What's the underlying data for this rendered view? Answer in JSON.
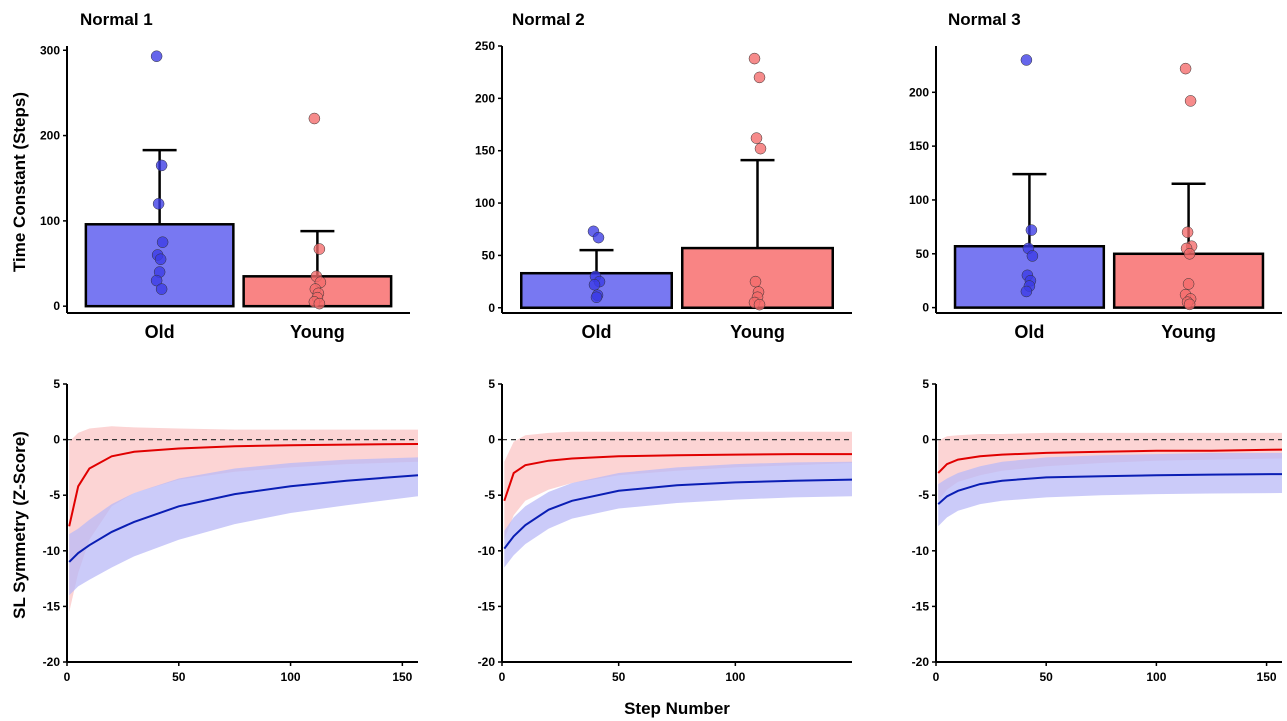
{
  "figure": {
    "ylabel_top": "Time Constant (Steps)",
    "ylabel_bottom": "SL Symmetry (Z-Score)",
    "xlabel_bottom": "Step Number"
  },
  "colors": {
    "old": "#7878f2",
    "old_point": "#3b3be6",
    "old_line": "#0a1eb4",
    "old_band": "#b9b9f7",
    "young": "#f98484",
    "young_point": "#f46a6a",
    "young_line": "#e00000",
    "young_band": "#fbc6c6"
  },
  "chart_data": [
    {
      "type": "bar",
      "panel": "top-1",
      "title": "Normal 1",
      "ylabel": "Time Constant (Steps)",
      "categories": [
        "Old",
        "Young"
      ],
      "values": [
        96,
        35
      ],
      "error_upper": [
        183,
        88
      ],
      "points": [
        [
          293,
          165,
          120,
          75,
          60,
          55,
          40,
          30,
          20
        ],
        [
          220,
          67,
          35,
          28,
          20,
          15,
          10,
          5,
          3
        ]
      ],
      "ylim": [
        -8,
        305
      ],
      "yticks": [
        0,
        100,
        200,
        300
      ]
    },
    {
      "type": "bar",
      "panel": "top-2",
      "title": "Normal 2",
      "ylabel": "",
      "categories": [
        "Old",
        "Young"
      ],
      "values": [
        33,
        57
      ],
      "error_upper": [
        55,
        141
      ],
      "points": [
        [
          73,
          67,
          30,
          25,
          22,
          12,
          10
        ],
        [
          238,
          220,
          162,
          152,
          25,
          15,
          10,
          5,
          3
        ]
      ],
      "ylim": [
        -5,
        250
      ],
      "yticks": [
        0,
        50,
        100,
        150,
        200,
        250
      ]
    },
    {
      "type": "bar",
      "panel": "top-3",
      "title": "Normal 3",
      "ylabel": "",
      "categories": [
        "Old",
        "Young"
      ],
      "values": [
        57,
        50
      ],
      "error_upper": [
        124,
        115
      ],
      "points": [
        [
          230,
          72,
          55,
          48,
          30,
          25,
          20,
          15
        ],
        [
          222,
          192,
          70,
          57,
          55,
          50,
          22,
          12,
          8,
          5,
          3
        ]
      ],
      "ylim": [
        -5,
        243
      ],
      "yticks": [
        0,
        50,
        100,
        150,
        200
      ]
    },
    {
      "type": "line",
      "panel": "bottom-1",
      "ylabel": "SL Symmetry (Z-Score)",
      "xlabel": "",
      "xlim": [
        0,
        157
      ],
      "ylim": [
        -20,
        5
      ],
      "xticks": [
        0,
        50,
        100,
        150
      ],
      "yticks": [
        5,
        0,
        -5,
        -10,
        -15,
        -20
      ],
      "reference_line": 0,
      "series": [
        {
          "group": "young",
          "x": [
            1,
            5,
            10,
            20,
            30,
            50,
            75,
            100,
            125,
            157
          ],
          "y": [
            -7.8,
            -4.2,
            -2.6,
            -1.5,
            -1.1,
            -0.8,
            -0.6,
            -0.5,
            -0.45,
            -0.4
          ],
          "upper": [
            -0.2,
            0.6,
            1.0,
            1.2,
            1.1,
            1.0,
            0.9,
            0.9,
            0.9,
            0.9
          ],
          "lower": [
            -15.5,
            -12.0,
            -9.0,
            -6.0,
            -4.8,
            -3.6,
            -2.9,
            -2.5,
            -2.2,
            -2.0
          ]
        },
        {
          "group": "old",
          "x": [
            1,
            5,
            10,
            20,
            30,
            50,
            75,
            100,
            125,
            157
          ],
          "y": [
            -11.0,
            -10.2,
            -9.5,
            -8.3,
            -7.4,
            -6.0,
            -4.9,
            -4.2,
            -3.7,
            -3.2
          ],
          "upper": [
            -8.5,
            -8.0,
            -7.2,
            -5.8,
            -4.8,
            -3.5,
            -2.6,
            -2.1,
            -1.8,
            -1.6
          ],
          "lower": [
            -14.0,
            -13.2,
            -12.6,
            -11.5,
            -10.5,
            -9.0,
            -7.6,
            -6.6,
            -5.9,
            -5.1
          ]
        }
      ]
    },
    {
      "type": "line",
      "panel": "bottom-2",
      "ylabel": "",
      "xlabel": "Step Number",
      "xlim": [
        0,
        150
      ],
      "ylim": [
        -20,
        5
      ],
      "xticks": [
        0,
        50,
        100
      ],
      "yticks": [
        5,
        0,
        -5,
        -10,
        -15,
        -20
      ],
      "reference_line": 0,
      "series": [
        {
          "group": "young",
          "x": [
            1,
            5,
            10,
            20,
            30,
            50,
            75,
            100,
            125,
            150
          ],
          "y": [
            -5.5,
            -3.0,
            -2.3,
            -1.9,
            -1.7,
            -1.5,
            -1.4,
            -1.35,
            -1.3,
            -1.3
          ],
          "upper": [
            -2.0,
            -0.2,
            0.4,
            0.6,
            0.7,
            0.7,
            0.7,
            0.7,
            0.7,
            0.7
          ],
          "lower": [
            -9.0,
            -6.8,
            -5.5,
            -4.5,
            -3.9,
            -3.2,
            -2.8,
            -2.5,
            -2.3,
            -2.1
          ]
        },
        {
          "group": "old",
          "x": [
            1,
            5,
            10,
            20,
            30,
            50,
            75,
            100,
            125,
            150
          ],
          "y": [
            -9.8,
            -8.7,
            -7.7,
            -6.3,
            -5.5,
            -4.6,
            -4.1,
            -3.85,
            -3.7,
            -3.6
          ],
          "upper": [
            -8.2,
            -7.0,
            -6.0,
            -4.7,
            -3.9,
            -3.0,
            -2.5,
            -2.2,
            -2.05,
            -2.0
          ],
          "lower": [
            -11.5,
            -10.4,
            -9.4,
            -8.0,
            -7.1,
            -6.2,
            -5.7,
            -5.4,
            -5.2,
            -5.1
          ]
        }
      ]
    },
    {
      "type": "line",
      "panel": "bottom-3",
      "ylabel": "",
      "xlabel": "",
      "xlim": [
        0,
        157
      ],
      "ylim": [
        -20,
        5
      ],
      "xticks": [
        0,
        50,
        100,
        150
      ],
      "yticks": [
        5,
        0,
        -5,
        -10,
        -15,
        -20
      ],
      "reference_line": 0,
      "series": [
        {
          "group": "young",
          "x": [
            1,
            5,
            10,
            20,
            30,
            50,
            75,
            100,
            125,
            157
          ],
          "y": [
            -3.0,
            -2.2,
            -1.8,
            -1.5,
            -1.35,
            -1.2,
            -1.1,
            -1.0,
            -1.0,
            -0.9
          ],
          "upper": [
            -0.1,
            0.3,
            0.4,
            0.5,
            0.5,
            0.6,
            0.6,
            0.6,
            0.6,
            0.6
          ],
          "lower": [
            -5.5,
            -4.5,
            -3.8,
            -3.2,
            -2.8,
            -2.4,
            -2.1,
            -1.9,
            -1.8,
            -1.7
          ]
        },
        {
          "group": "old",
          "x": [
            1,
            5,
            10,
            20,
            30,
            50,
            75,
            100,
            125,
            157
          ],
          "y": [
            -5.8,
            -5.1,
            -4.6,
            -4.0,
            -3.7,
            -3.4,
            -3.3,
            -3.2,
            -3.15,
            -3.1
          ],
          "upper": [
            -4.0,
            -3.5,
            -3.0,
            -2.4,
            -2.0,
            -1.6,
            -1.4,
            -1.3,
            -1.2,
            -1.2
          ],
          "lower": [
            -7.8,
            -7.0,
            -6.4,
            -5.8,
            -5.5,
            -5.2,
            -5.0,
            -4.9,
            -4.85,
            -4.8
          ]
        }
      ]
    }
  ]
}
